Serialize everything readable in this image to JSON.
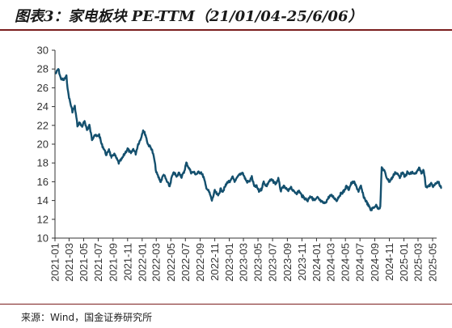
{
  "title": "图表3：家电板块 PE-TTM（21/01/04-25/6/06）",
  "source": "来源：Wind，国金证券研究所",
  "chart_data": {
    "type": "line",
    "ylim": [
      10,
      30
    ],
    "yticks": [
      10,
      12,
      14,
      16,
      18,
      20,
      22,
      24,
      26,
      28,
      30
    ],
    "xticks": [
      "2021-01",
      "2021-03",
      "2021-05",
      "2021-07",
      "2021-09",
      "2021-11",
      "2022-01",
      "2022-03",
      "2022-05",
      "2022-07",
      "2022-09",
      "2022-11",
      "2023-01",
      "2023-03",
      "2023-05",
      "2023-07",
      "2023-09",
      "2023-11",
      "2024-01",
      "2024-03",
      "2024-05",
      "2024-07",
      "2024-09",
      "2024-11",
      "2025-01",
      "2025-03",
      "2025-05"
    ],
    "grid": false,
    "legend": "none",
    "line_color": "#14506e",
    "series": [
      {
        "x": [
          "2021-01-04",
          "2021-01-15",
          "2021-01-25",
          "2021-02-05",
          "2021-02-18",
          "2021-02-25",
          "2021-03-05",
          "2021-03-15",
          "2021-03-25",
          "2021-04-05",
          "2021-04-15",
          "2021-04-25",
          "2021-05-05",
          "2021-05-15",
          "2021-05-25",
          "2021-06-05",
          "2021-06-15",
          "2021-06-25",
          "2021-07-05",
          "2021-07-15",
          "2021-07-25",
          "2021-08-05",
          "2021-08-15",
          "2021-08-25",
          "2021-09-05",
          "2021-09-15",
          "2021-09-25",
          "2021-10-10",
          "2021-10-20",
          "2021-11-01",
          "2021-11-15",
          "2021-11-25",
          "2021-12-05",
          "2021-12-15",
          "2021-12-25",
          "2022-01-05",
          "2022-01-15",
          "2022-01-25",
          "2022-02-10",
          "2022-02-20",
          "2022-03-01",
          "2022-03-10",
          "2022-03-20",
          "2022-04-01",
          "2022-04-15",
          "2022-04-26",
          "2022-05-05",
          "2022-05-15",
          "2022-05-25",
          "2022-06-05",
          "2022-06-15",
          "2022-06-25",
          "2022-07-05",
          "2022-07-15",
          "2022-07-25",
          "2022-08-05",
          "2022-08-15",
          "2022-08-25",
          "2022-09-05",
          "2022-09-15",
          "2022-09-25",
          "2022-10-10",
          "2022-10-20",
          "2022-11-01",
          "2022-11-15",
          "2022-11-25",
          "2022-12-05",
          "2022-12-15",
          "2022-12-25",
          "2023-01-05",
          "2023-01-15",
          "2023-01-25",
          "2023-02-05",
          "2023-02-15",
          "2023-02-25",
          "2023-03-05",
          "2023-03-15",
          "2023-03-25",
          "2023-04-05",
          "2023-04-15",
          "2023-04-25",
          "2023-05-05",
          "2023-05-15",
          "2023-05-25",
          "2023-06-05",
          "2023-06-15",
          "2023-06-25",
          "2023-07-05",
          "2023-07-15",
          "2023-07-25",
          "2023-08-05",
          "2023-08-15",
          "2023-08-25",
          "2023-09-05",
          "2023-09-15",
          "2023-09-25",
          "2023-10-10",
          "2023-10-20",
          "2023-11-01",
          "2023-11-15",
          "2023-11-25",
          "2023-12-05",
          "2023-12-15",
          "2023-12-25",
          "2024-01-05",
          "2024-01-15",
          "2024-01-25",
          "2024-02-05",
          "2024-02-18",
          "2024-02-25",
          "2024-03-05",
          "2024-03-15",
          "2024-03-25",
          "2024-04-05",
          "2024-04-15",
          "2024-04-25",
          "2024-05-05",
          "2024-05-15",
          "2024-05-25",
          "2024-06-05",
          "2024-06-15",
          "2024-06-25",
          "2024-07-05",
          "2024-07-15",
          "2024-07-25",
          "2024-08-05",
          "2024-08-15",
          "2024-08-25",
          "2024-09-05",
          "2024-09-15",
          "2024-09-24",
          "2024-09-30",
          "2024-10-10",
          "2024-10-20",
          "2024-11-01",
          "2024-11-15",
          "2024-11-25",
          "2024-12-05",
          "2024-12-15",
          "2024-12-25",
          "2025-01-05",
          "2025-01-15",
          "2025-01-25",
          "2025-02-05",
          "2025-02-15",
          "2025-02-25",
          "2025-03-05",
          "2025-03-15",
          "2025-03-25",
          "2025-04-03",
          "2025-04-08",
          "2025-04-15",
          "2025-04-25",
          "2025-05-05",
          "2025-05-15",
          "2025-05-25",
          "2025-06-06"
        ],
        "values": [
          27.5,
          28.0,
          27.0,
          26.8,
          27.2,
          25.5,
          24.5,
          23.5,
          24.0,
          22.0,
          22.3,
          21.8,
          22.5,
          21.5,
          22.0,
          20.5,
          21.0,
          20.8,
          21.0,
          20.0,
          19.5,
          18.8,
          19.5,
          18.5,
          19.0,
          18.5,
          18.0,
          18.5,
          19.0,
          19.5,
          19.0,
          19.5,
          19.0,
          20.0,
          20.5,
          21.5,
          21.0,
          20.0,
          19.5,
          18.5,
          17.0,
          16.5,
          16.0,
          16.8,
          16.0,
          15.5,
          16.5,
          17.0,
          16.5,
          17.0,
          16.5,
          17.0,
          18.0,
          17.5,
          17.0,
          17.0,
          16.8,
          17.0,
          17.0,
          16.5,
          15.5,
          14.8,
          14.0,
          15.0,
          14.5,
          15.2,
          15.0,
          15.5,
          16.0,
          16.0,
          16.5,
          16.0,
          16.5,
          16.8,
          17.0,
          16.5,
          16.0,
          16.0,
          16.5,
          15.5,
          15.5,
          15.0,
          15.2,
          16.0,
          15.5,
          16.0,
          16.2,
          16.0,
          15.8,
          16.3,
          15.0,
          15.5,
          15.3,
          15.0,
          15.5,
          15.0,
          14.8,
          15.0,
          14.5,
          14.2,
          14.0,
          14.5,
          14.2,
          14.0,
          14.3,
          14.0,
          13.8,
          13.7,
          14.2,
          14.5,
          14.5,
          14.3,
          14.0,
          14.5,
          14.8,
          15.0,
          15.5,
          15.2,
          15.8,
          16.0,
          15.5,
          15.0,
          15.5,
          14.5,
          14.0,
          13.5,
          13.0,
          13.2,
          13.5,
          13.2,
          13.3,
          17.5,
          17.2,
          16.5,
          16.0,
          16.5,
          17.0,
          16.8,
          16.5,
          17.0,
          16.5,
          17.0,
          16.8,
          17.0,
          16.8,
          17.0,
          17.5,
          17.0,
          17.2,
          15.5,
          15.5,
          15.5,
          15.8,
          15.5,
          15.8,
          16.0,
          15.3
        ]
      }
    ]
  }
}
